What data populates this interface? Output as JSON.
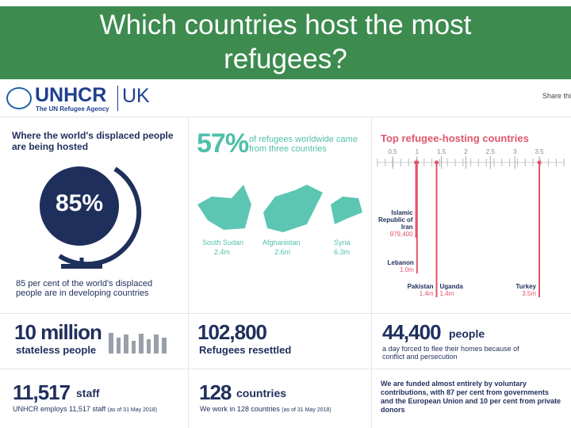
{
  "header": {
    "title": "Which countries host the most refugees?"
  },
  "logo": {
    "name": "UNHCR",
    "tagline": "The UN Refugee Agency",
    "country": "UK"
  },
  "share": "Share thi",
  "displaced": {
    "heading": "Where the world's displaced people are being hosted",
    "stat": "85%",
    "caption": "85 per cent of the world's displaced people are in developing countries"
  },
  "origins": {
    "stat": "57%",
    "caption": "of refugees worldwide came from three countries",
    "countries": [
      {
        "name": "South Sudan",
        "value": "2.4m"
      },
      {
        "name": "Afghanistan",
        "value": "2.6m"
      },
      {
        "name": "Syria",
        "value": "6.3m"
      }
    ]
  },
  "hosting_chart": {
    "title": "Top refugee-hosting countries",
    "xlim": [
      0.5,
      3.5
    ],
    "xticks": [
      0.5,
      1,
      1.5,
      2,
      2.5,
      3,
      3.5
    ],
    "countries": [
      {
        "name": "Islamic Republic of Iran",
        "value": 0.9794,
        "label": "979,400"
      },
      {
        "name": "Lebanon",
        "value": 1.0,
        "label": "1.0m"
      },
      {
        "name": "Pakistan",
        "value": 1.4,
        "label": "1.4m"
      },
      {
        "name": "Uganda",
        "value": 1.4,
        "label": "1.4m"
      },
      {
        "name": "Turkey",
        "value": 3.5,
        "label": "3.5m"
      }
    ]
  },
  "stats": {
    "stateless": {
      "number": "10 million",
      "caption": "stateless people"
    },
    "resettled": {
      "number": "102,800",
      "caption": "Refugees resettled"
    },
    "displaced_daily": {
      "number": "44,400",
      "unit": "people",
      "caption": "a day forced to flee their homes because of conflict and persecution"
    },
    "staff": {
      "number": "11,517",
      "unit": "staff",
      "caption": "UNHCR employs 11,517 staff",
      "note": "(as of 31 May 2018)"
    },
    "countries": {
      "number": "128",
      "unit": "countries",
      "caption": "We work in 128 countries",
      "note": "(as of 31 May 2018)"
    },
    "funding": {
      "caption": "We are funded almost entirely by voluntary contributions, with 87 per cent from governments and the European Union and 10 per cent from private donors"
    }
  }
}
